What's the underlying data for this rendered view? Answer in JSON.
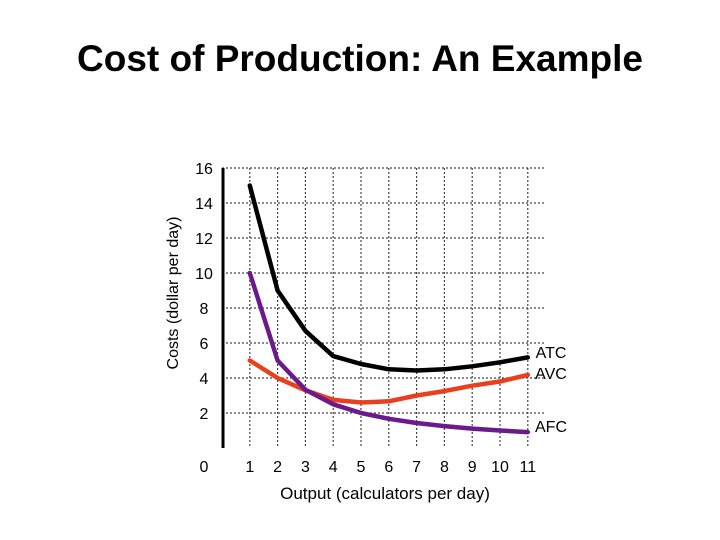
{
  "chart_data": {
    "type": "line",
    "title": "Cost of Production: An Example",
    "xlabel": "Output (calculators per day)",
    "ylabel": "Costs (dollar per day)",
    "x_ticks": [
      0,
      1,
      2,
      3,
      4,
      5,
      6,
      7,
      8,
      9,
      10,
      11
    ],
    "y_ticks": [
      16,
      14,
      12,
      10,
      8,
      6,
      4,
      2
    ],
    "xlim": [
      0,
      11
    ],
    "ylim": [
      0,
      16
    ],
    "grid": true,
    "series": [
      {
        "name": "ATC",
        "color": "#000000",
        "x": [
          1,
          2,
          3,
          4,
          5,
          6,
          7,
          8,
          9,
          10,
          11
        ],
        "y": [
          15.0,
          9.0,
          6.7,
          5.25,
          4.8,
          4.5,
          4.43,
          4.5,
          4.67,
          4.9,
          5.18
        ]
      },
      {
        "name": "AVC",
        "color": "#e8401c",
        "x": [
          1,
          2,
          3,
          4,
          5,
          6,
          7,
          8,
          9,
          10,
          11
        ],
        "y": [
          5.0,
          4.0,
          3.3,
          2.75,
          2.6,
          2.67,
          3.0,
          3.25,
          3.56,
          3.8,
          4.18
        ]
      },
      {
        "name": "AFC",
        "color": "#6a1a8a",
        "x": [
          1,
          2,
          3,
          4,
          5,
          6,
          7,
          8,
          9,
          10,
          11
        ],
        "y": [
          10.0,
          5.0,
          3.33,
          2.5,
          2.0,
          1.67,
          1.43,
          1.25,
          1.11,
          1.0,
          0.91
        ]
      }
    ]
  }
}
